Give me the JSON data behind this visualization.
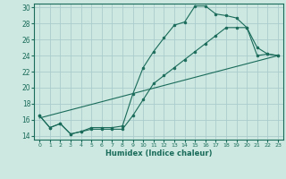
{
  "xlabel": "Humidex (Indice chaleur)",
  "background_color": "#cce8e0",
  "grid_color": "#aacccc",
  "line_color": "#1a6b5a",
  "xlim": [
    -0.5,
    23.5
  ],
  "ylim": [
    13.5,
    30.5
  ],
  "yticks": [
    14,
    16,
    18,
    20,
    22,
    24,
    26,
    28,
    30
  ],
  "xticks": [
    0,
    1,
    2,
    3,
    4,
    5,
    6,
    7,
    8,
    9,
    10,
    11,
    12,
    13,
    14,
    15,
    16,
    17,
    18,
    19,
    20,
    21,
    22,
    23
  ],
  "line1_x": [
    0,
    1,
    2,
    3,
    4,
    5,
    6,
    7,
    8,
    9,
    10,
    11,
    12,
    13,
    14,
    15,
    16,
    17,
    18,
    19,
    20,
    21,
    22,
    23
  ],
  "line1_y": [
    16.5,
    15.0,
    15.5,
    14.2,
    14.5,
    15.0,
    15.0,
    15.0,
    15.2,
    19.2,
    22.5,
    24.5,
    26.2,
    27.8,
    28.2,
    30.2,
    30.2,
    29.2,
    29.0,
    28.7,
    27.5,
    25.0,
    24.2,
    24.0
  ],
  "line2_x": [
    0,
    1,
    2,
    3,
    4,
    5,
    6,
    7,
    8,
    9,
    10,
    11,
    12,
    13,
    14,
    15,
    16,
    17,
    18,
    19,
    20,
    21,
    22,
    23
  ],
  "line2_y": [
    16.5,
    15.0,
    15.5,
    14.2,
    14.5,
    14.8,
    14.8,
    14.8,
    14.8,
    16.5,
    18.5,
    20.5,
    21.5,
    22.5,
    23.5,
    24.5,
    25.5,
    26.5,
    27.5,
    27.5,
    27.5,
    24.0,
    24.2,
    24.0
  ],
  "line3_x": [
    0,
    23
  ],
  "line3_y": [
    16.2,
    24.0
  ]
}
